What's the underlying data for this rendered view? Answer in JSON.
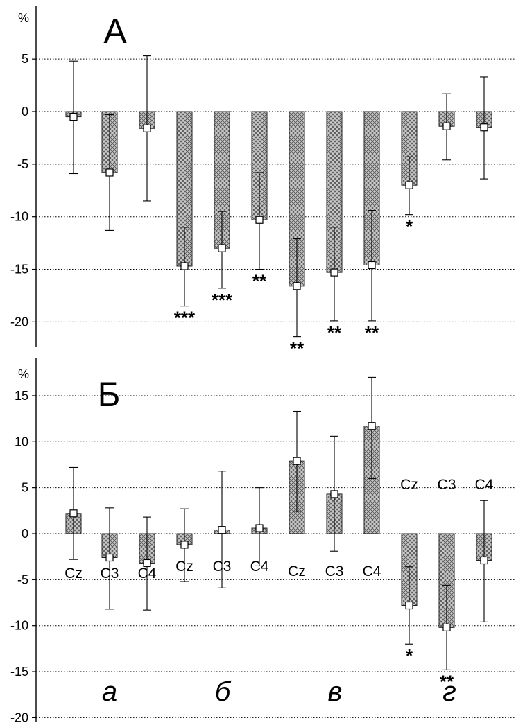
{
  "chart_data": [
    {
      "type": "bar",
      "title": "А",
      "ylabel": "%",
      "ylim": [
        -22,
        8
      ],
      "yticks": [
        5,
        0,
        -5,
        -10,
        -15,
        -20
      ],
      "grid": true,
      "error_bars": true,
      "categories": [
        "а Cz",
        "а C3",
        "а C4",
        "б Cz",
        "б C3",
        "б C4",
        "в Cz",
        "в C3",
        "в C4",
        "г Cz",
        "г C3",
        "г C4"
      ],
      "values": [
        -0.5,
        -5.8,
        -1.6,
        -14.7,
        -13.0,
        -10.3,
        -16.6,
        -15.3,
        -14.6,
        -7.0,
        -1.4,
        -1.5
      ],
      "error_upper": [
        4.8,
        -0.3,
        5.3,
        -11.0,
        -9.5,
        -5.8,
        -12.1,
        -11.0,
        -9.4,
        -4.3,
        1.7,
        3.3
      ],
      "error_lower": [
        -5.9,
        -11.3,
        -8.5,
        -18.5,
        -16.8,
        -15.0,
        -21.4,
        -19.9,
        -19.9,
        -9.8,
        -4.6,
        -6.4
      ],
      "significance": [
        "",
        "",
        "",
        "***",
        "***",
        "**",
        "**",
        "**",
        "**",
        "*",
        "",
        ""
      ]
    },
    {
      "type": "bar",
      "title": "Б",
      "ylabel": "%",
      "ylim": [
        -20,
        17
      ],
      "yticks": [
        15,
        10,
        5,
        0,
        -5,
        -10,
        -15,
        -20
      ],
      "grid": true,
      "error_bars": true,
      "categories": [
        "а Cz",
        "а C3",
        "а C4",
        "б Cz",
        "б C3",
        "б C4",
        "в Cz",
        "в C3",
        "в C4",
        "г Cz",
        "г C3",
        "г C4"
      ],
      "values": [
        2.2,
        -2.6,
        -3.2,
        -1.2,
        0.4,
        0.6,
        7.9,
        4.3,
        11.7,
        -7.8,
        -10.2,
        -2.9
      ],
      "error_upper": [
        7.2,
        2.8,
        1.8,
        2.7,
        6.8,
        5.0,
        13.3,
        10.6,
        17.0,
        -3.6,
        -5.6,
        3.6
      ],
      "error_lower": [
        -2.8,
        -8.2,
        -8.3,
        -5.2,
        -5.9,
        -3.5,
        2.4,
        -1.9,
        6.0,
        -12.0,
        -14.8,
        -9.6
      ],
      "significance": [
        "",
        "",
        "",
        "",
        "",
        "",
        "",
        "",
        "",
        "*",
        "**",
        ""
      ],
      "electrode_labels": [
        "Cz",
        "C3",
        "C4"
      ],
      "group_labels": [
        "а",
        "б",
        "в",
        "г"
      ]
    }
  ],
  "colors": {
    "bar_fill": "#bdbdbd",
    "bar_pattern": "#555555",
    "grid": "#000000",
    "axis": "#000000",
    "marker_fill": "#ffffff"
  }
}
